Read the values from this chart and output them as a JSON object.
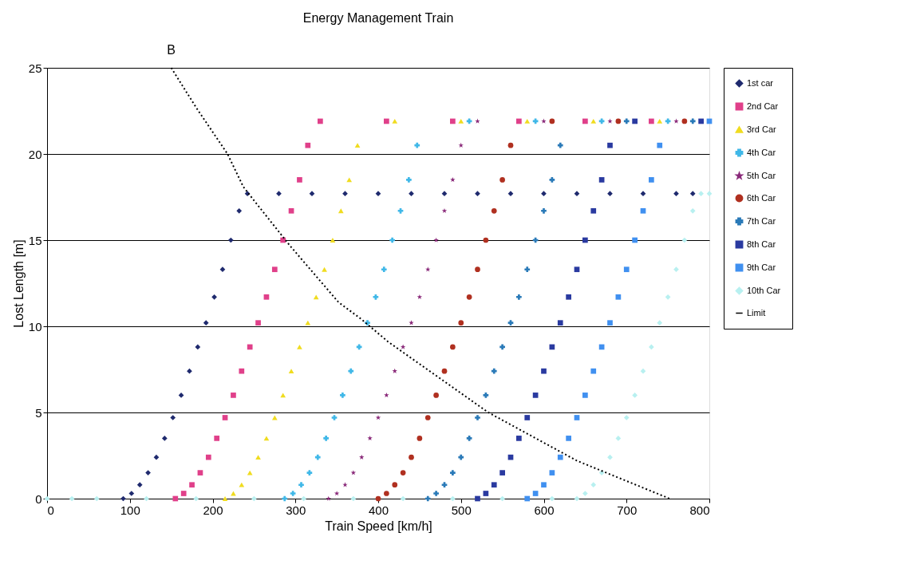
{
  "chart_data": {
    "type": "scatter",
    "title": "Energy Management Train",
    "xlabel": "Train Speed [km/h]",
    "ylabel": "Lost Length [m]",
    "xlim": [
      0,
      800
    ],
    "xticks": [
      0,
      100,
      200,
      300,
      400,
      500,
      600,
      700,
      800
    ],
    "ylim": [
      0,
      25
    ],
    "yticks": [
      0,
      5,
      10,
      15,
      20,
      25
    ],
    "grid": "y",
    "legend": "right",
    "annotations": [
      {
        "text": "B",
        "x": 150,
        "y": 25
      }
    ],
    "series": [
      {
        "name": "1st car",
        "color": "#1f2a6e",
        "marker": "diamond",
        "x": [
          92,
          102,
          112,
          122,
          132,
          142,
          152,
          162,
          172,
          182,
          192,
          202,
          212,
          222,
          232,
          242,
          280,
          320,
          360,
          400,
          440,
          480,
          520,
          560,
          600,
          640,
          680,
          720,
          760,
          780
        ],
        "values": [
          0,
          0.3,
          0.8,
          1.5,
          2.4,
          3.5,
          4.7,
          6.0,
          7.4,
          8.8,
          10.2,
          11.7,
          13.3,
          15.0,
          16.7,
          17.7,
          17.7,
          17.7,
          17.7,
          17.7,
          17.7,
          17.7,
          17.7,
          17.7,
          17.7,
          17.7,
          17.7,
          17.7,
          17.7,
          17.7
        ]
      },
      {
        "name": "2nd Car",
        "color": "#e0408a",
        "marker": "square",
        "x": [
          155,
          165,
          175,
          185,
          195,
          205,
          215,
          225,
          235,
          245,
          255,
          265,
          275,
          285,
          295,
          305,
          315,
          330,
          410,
          490,
          570,
          650,
          730
        ],
        "values": [
          0,
          0.3,
          0.8,
          1.5,
          2.4,
          3.5,
          4.7,
          6.0,
          7.4,
          8.8,
          10.2,
          11.7,
          13.3,
          15.0,
          16.7,
          18.5,
          20.5,
          21.9,
          21.9,
          21.9,
          21.9,
          21.9,
          21.9
        ]
      },
      {
        "name": "3rd Car",
        "color": "#f0dc20",
        "marker": "triangle",
        "x": [
          215,
          225,
          235,
          245,
          255,
          265,
          275,
          285,
          295,
          305,
          315,
          325,
          335,
          345,
          355,
          365,
          375,
          420,
          500,
          580,
          660,
          740
        ],
        "values": [
          0,
          0.3,
          0.8,
          1.5,
          2.4,
          3.5,
          4.7,
          6.0,
          7.4,
          8.8,
          10.2,
          11.7,
          13.3,
          15.0,
          16.7,
          18.5,
          20.5,
          21.9,
          21.9,
          21.9,
          21.9,
          21.9
        ]
      },
      {
        "name": "4th Car",
        "color": "#40b8e8",
        "marker": "cross",
        "x": [
          287,
          297,
          307,
          317,
          327,
          337,
          347,
          357,
          367,
          377,
          387,
          397,
          407,
          417,
          427,
          437,
          447,
          510,
          590,
          670,
          750
        ],
        "values": [
          0,
          0.3,
          0.8,
          1.5,
          2.4,
          3.5,
          4.7,
          6.0,
          7.4,
          8.8,
          10.2,
          11.7,
          13.3,
          15.0,
          16.7,
          18.5,
          20.5,
          21.9,
          21.9,
          21.9,
          21.9
        ]
      },
      {
        "name": "5th Car",
        "color": "#8a2a7a",
        "marker": "star",
        "x": [
          340,
          350,
          360,
          370,
          380,
          390,
          400,
          410,
          420,
          430,
          440,
          450,
          460,
          470,
          480,
          490,
          500,
          520,
          600,
          680,
          760
        ],
        "values": [
          0,
          0.3,
          0.8,
          1.5,
          2.4,
          3.5,
          4.7,
          6.0,
          7.4,
          8.8,
          10.2,
          11.7,
          13.3,
          15.0,
          16.7,
          18.5,
          20.5,
          21.9,
          21.9,
          21.9,
          21.9
        ]
      },
      {
        "name": "6th Car",
        "color": "#b03020",
        "marker": "circle",
        "x": [
          400,
          410,
          420,
          430,
          440,
          450,
          460,
          470,
          480,
          490,
          500,
          510,
          520,
          530,
          540,
          550,
          560,
          610,
          690,
          770
        ],
        "values": [
          0,
          0.3,
          0.8,
          1.5,
          2.4,
          3.5,
          4.7,
          6.0,
          7.4,
          8.8,
          10.2,
          11.7,
          13.3,
          15.0,
          16.7,
          18.5,
          20.5,
          21.9,
          21.9,
          21.9
        ]
      },
      {
        "name": "7th Car",
        "color": "#2a7ab8",
        "marker": "cross",
        "x": [
          460,
          470,
          480,
          490,
          500,
          510,
          520,
          530,
          540,
          550,
          560,
          570,
          580,
          590,
          600,
          610,
          620,
          700,
          780
        ],
        "values": [
          0,
          0.3,
          0.8,
          1.5,
          2.4,
          3.5,
          4.7,
          6.0,
          7.4,
          8.8,
          10.2,
          11.7,
          13.3,
          15.0,
          16.7,
          18.5,
          20.5,
          21.9,
          21.9
        ]
      },
      {
        "name": "8th Car",
        "color": "#2a3aa0",
        "marker": "square",
        "x": [
          520,
          530,
          540,
          550,
          560,
          570,
          580,
          590,
          600,
          610,
          620,
          630,
          640,
          650,
          660,
          670,
          680,
          710,
          790
        ],
        "values": [
          0,
          0.3,
          0.8,
          1.5,
          2.4,
          3.5,
          4.7,
          6.0,
          7.4,
          8.8,
          10.2,
          11.7,
          13.3,
          15.0,
          16.7,
          18.5,
          20.5,
          21.9,
          21.9
        ]
      },
      {
        "name": "9th Car",
        "color": "#4090f0",
        "marker": "square",
        "x": [
          580,
          590,
          600,
          610,
          620,
          630,
          640,
          650,
          660,
          670,
          680,
          690,
          700,
          710,
          720,
          730,
          740,
          800
        ],
        "values": [
          0,
          0.3,
          0.8,
          1.5,
          2.4,
          3.5,
          4.7,
          6.0,
          7.4,
          8.8,
          10.2,
          11.7,
          13.3,
          15.0,
          16.7,
          18.5,
          20.5,
          21.9
        ]
      },
      {
        "name": "10th Car",
        "color": "#b8f0f0",
        "marker": "diamond",
        "x": [
          0,
          30,
          60,
          120,
          180,
          250,
          310,
          370,
          430,
          490,
          550,
          610,
          640,
          650,
          660,
          670,
          680,
          690,
          700,
          710,
          720,
          730,
          740,
          750,
          760,
          770,
          780,
          790,
          800
        ],
        "values": [
          0,
          0,
          0,
          0,
          0,
          0,
          0,
          0,
          0,
          0,
          0,
          0,
          0,
          0.3,
          0.8,
          1.5,
          2.4,
          3.5,
          4.7,
          6.0,
          7.4,
          8.8,
          10.2,
          11.7,
          13.3,
          15.0,
          16.7,
          17.7,
          17.7
        ]
      },
      {
        "name": "Limit",
        "type": "line",
        "color": "#000000",
        "line_style": "dotted",
        "x": [
          150,
          180,
          218,
          237,
          250,
          293,
          352,
          380,
          412,
          533,
          640,
          752
        ],
        "values": [
          25,
          22.7,
          20,
          18.1,
          17.3,
          14.7,
          11.4,
          10.4,
          9.1,
          5,
          2.2,
          0
        ]
      }
    ]
  }
}
